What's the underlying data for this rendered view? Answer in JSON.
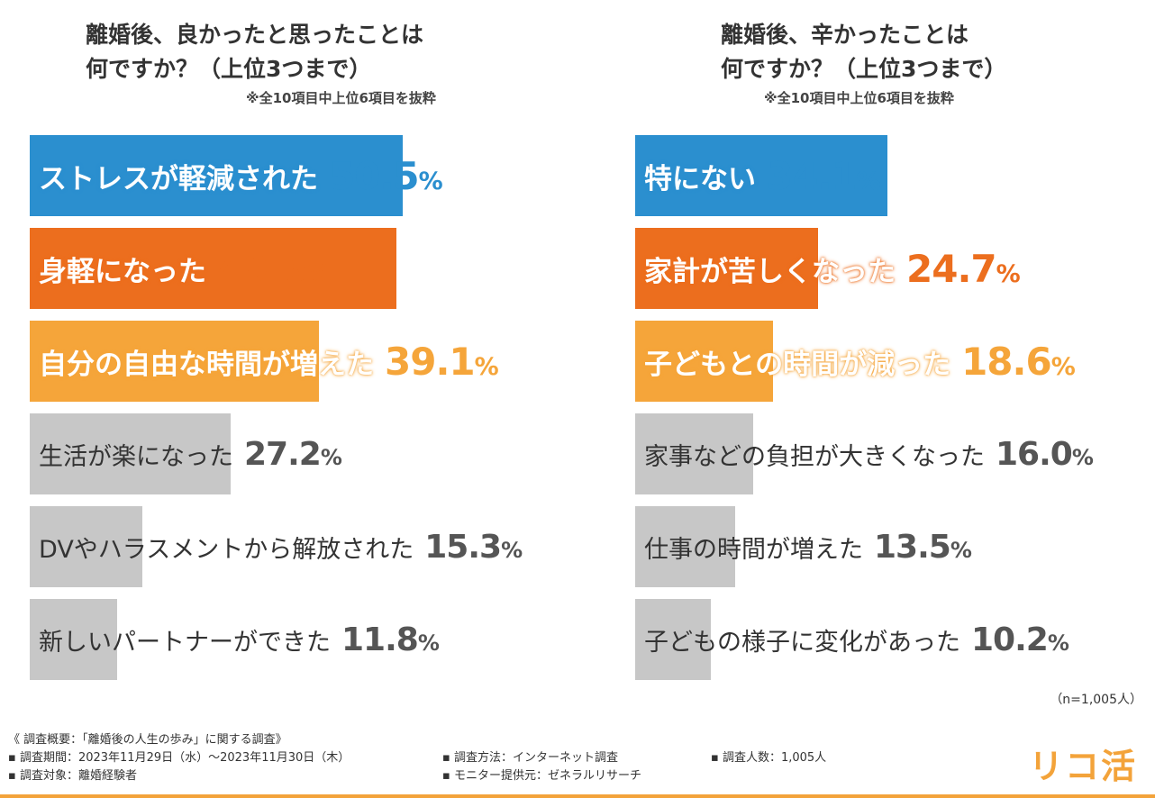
{
  "chart_data": [
    {
      "type": "bar",
      "title": [
        "離婚後、良かったと思ったことは",
        "何ですか？（上位3つまで）"
      ],
      "subtitle": "※全10項目中上位6項目を抜粋",
      "categories": [
        "ストレスが軽減された",
        "身軽になった",
        "自分の自由な時間が増えた",
        "生活が楽になった",
        "DVやハラスメントから解放された",
        "新しいパートナーができた"
      ],
      "values": [
        50.5,
        49.6,
        39.1,
        27.2,
        15.3,
        11.8
      ],
      "unit": "%",
      "colors": [
        "#2b8fcf",
        "#ec6e1e",
        "#f5a53a",
        "#c7c7c7",
        "#c7c7c7",
        "#c7c7c7"
      ],
      "orientation": "horizontal"
    },
    {
      "type": "bar",
      "title": [
        "離婚後、辛かったことは",
        "何ですか？（上位3つまで）"
      ],
      "subtitle": "※全10項目中上位6項目を抜粋",
      "categories": [
        "特にない",
        "家計が苦しくなった",
        "子どもとの時間が減った",
        "家事などの負担が大きくなった",
        "仕事の時間が増えた",
        "子どもの様子に変化があった"
      ],
      "values": [
        34.1,
        24.7,
        18.6,
        16.0,
        13.5,
        10.2
      ],
      "unit": "%",
      "colors": [
        "#2b8fcf",
        "#ec6e1e",
        "#f5a53a",
        "#c7c7c7",
        "#c7c7c7",
        "#c7c7c7"
      ],
      "orientation": "horizontal"
    }
  ],
  "sample_note": "（n=1,005人）",
  "footer": {
    "heading": "《 調査概要：「離婚後の人生の歩み」に関する調査》",
    "period": "▪ 調査期間：2023年11月29日（水）～2023年11月30日（木）",
    "target": "▪ 調査対象：離婚経験者",
    "method": "▪ 調査方法：インターネット調査",
    "provider": "▪ モニター提供元：ゼネラルリサーチ",
    "count": "▪ 調査人数：1,005人"
  },
  "logo": "リコ活",
  "text_colors": {
    "highlight_label": "#ffffff",
    "gray_label": "#333333",
    "gray_value": "#555555"
  }
}
